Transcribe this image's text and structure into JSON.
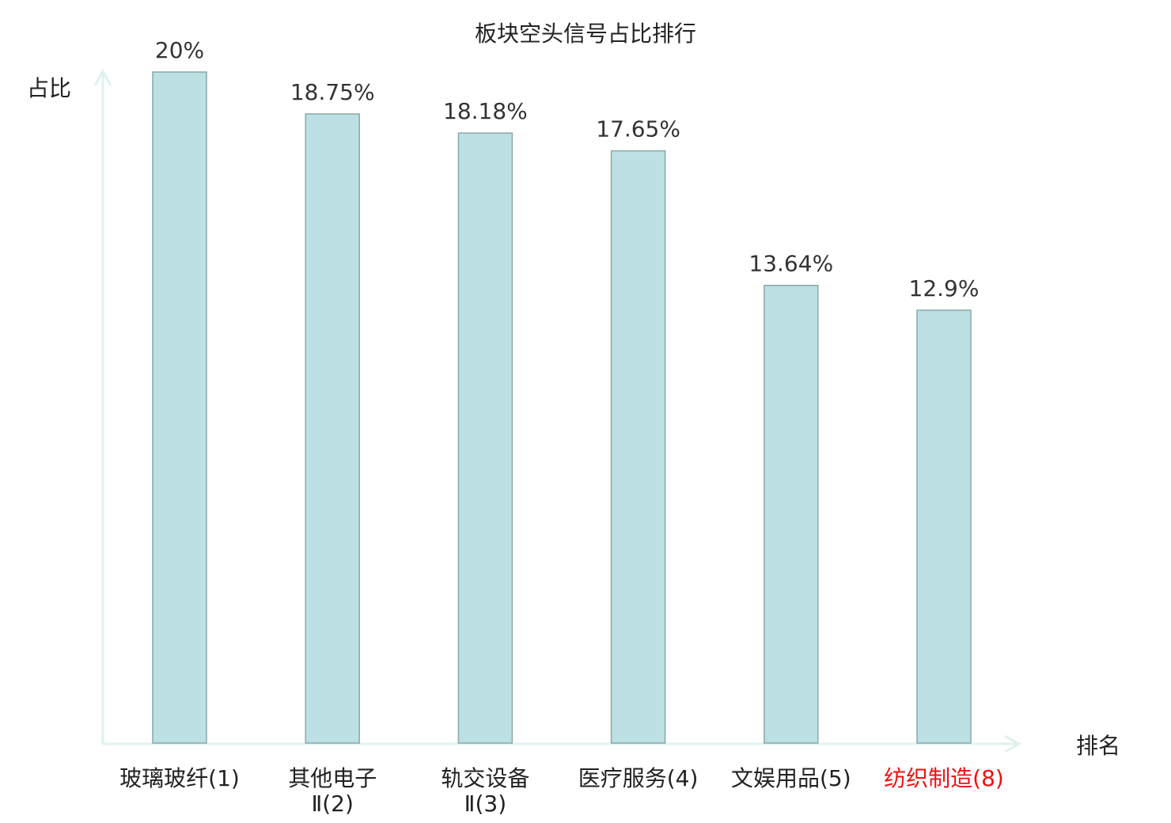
{
  "chart_data": {
    "type": "bar",
    "title": "板块空头信号占比排行",
    "xlabel": "排名",
    "ylabel": "占比",
    "categories": [
      {
        "lines": [
          "玻璃玻纤(1)"
        ],
        "highlight": false
      },
      {
        "lines": [
          "其他电子",
          "Ⅱ(2)"
        ],
        "highlight": false
      },
      {
        "lines": [
          "轨交设备",
          "Ⅱ(3)"
        ],
        "highlight": false
      },
      {
        "lines": [
          "医疗服务(4)"
        ],
        "highlight": false
      },
      {
        "lines": [
          "文娱用品(5)"
        ],
        "highlight": false
      },
      {
        "lines": [
          "纺织制造(8)"
        ],
        "highlight": true
      }
    ],
    "values": [
      20,
      18.75,
      18.18,
      17.65,
      13.64,
      12.9
    ],
    "data_labels": [
      "20%",
      "18.75%",
      "18.18%",
      "17.65%",
      "13.64%",
      "12.9%"
    ],
    "ylim": [
      0,
      20
    ],
    "grid": false,
    "colors": {
      "bar_fill": "#bce0e3",
      "bar_stroke": "#8aa8a8",
      "axis": "#dff2ef",
      "highlight_label": "#ee1111",
      "text": "#222222"
    }
  }
}
